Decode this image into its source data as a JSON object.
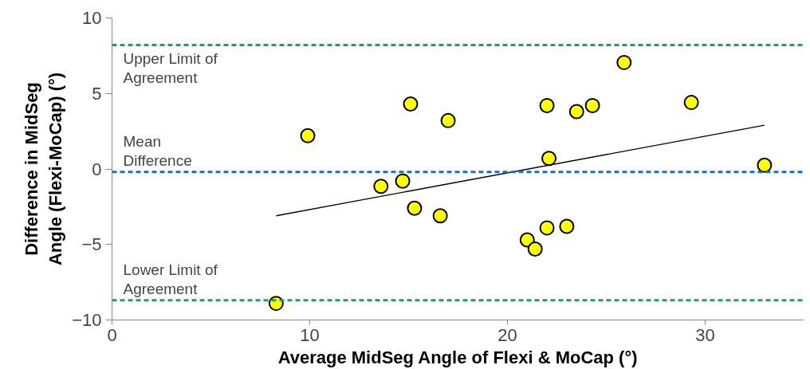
{
  "chart_data": {
    "type": "scatter",
    "xlabel": "Average MidSeg Angle of Flexi & MoCap (°)",
    "ylabel": "Difference in MidSeg\nAngle (Flexi-MoCap) (°)",
    "xlim": [
      0,
      35
    ],
    "ylim": [
      -10,
      10
    ],
    "xticks": [
      0,
      10,
      20,
      30
    ],
    "yticks": [
      -10,
      -5,
      0,
      5,
      10
    ],
    "grid": false,
    "series": [
      {
        "marker": "circle",
        "color": "#ffff00",
        "x": [
          8.3,
          9.9,
          13.6,
          14.7,
          15.1,
          15.3,
          16.6,
          17.0,
          21.0,
          21.4,
          22.0,
          22.0,
          22.1,
          23.0,
          23.5,
          24.3,
          25.9,
          29.3,
          33.0
        ],
        "values": [
          -8.9,
          2.2,
          -1.15,
          -0.8,
          4.3,
          -2.6,
          -3.1,
          3.2,
          -4.7,
          -5.3,
          -3.9,
          4.2,
          0.7,
          -3.8,
          3.8,
          4.2,
          7.05,
          4.4,
          0.25
        ]
      },
      {
        "type": "line",
        "color": "#000000",
        "x": [
          8.3,
          33.0
        ],
        "values": [
          -3.1,
          2.9
        ]
      }
    ],
    "ref_lines": [
      {
        "axis": "y",
        "value": 8.2,
        "label": "Upper Limit of\nAgreement",
        "color": "#1fa060",
        "line_style": "dashed"
      },
      {
        "axis": "y",
        "value": -0.2,
        "label": "Mean\nDifference",
        "color": "#1f6fb0",
        "line_style": "dashed"
      },
      {
        "axis": "y",
        "value": -8.7,
        "label": "Lower Limit of\nAgreement",
        "color": "#1fa060",
        "line_style": "dashed"
      }
    ]
  }
}
